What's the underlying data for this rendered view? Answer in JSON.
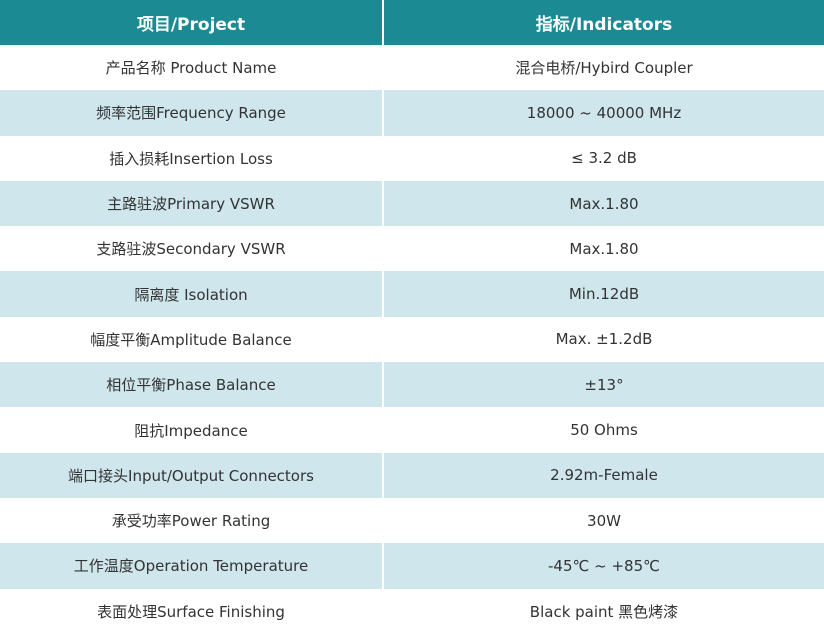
{
  "table": {
    "header": [
      "项目/Project",
      "指标/Indicators"
    ],
    "rows": [
      [
        "产品名称 Product Name",
        "混合电桥/Hybird Coupler"
      ],
      [
        "频率范围Frequency Range",
        "18000 ~ 40000 MHz"
      ],
      [
        "插入损耗Insertion Loss",
        "≤ 3.2 dB"
      ],
      [
        "主路驻波Primary VSWR",
        "Max.1.80"
      ],
      [
        "支路驻波Secondary VSWR",
        "Max.1.80"
      ],
      [
        "隔离度 Isolation",
        "Min.12dB"
      ],
      [
        "幅度平衡Amplitude Balance",
        "Max. ±1.2dB"
      ],
      [
        "相位平衡Phase Balance",
        "±13°"
      ],
      [
        "阻抗Impedance",
        "50 Ohms"
      ],
      [
        "端口接头Input/Output Connectors",
        "2.92m-Female"
      ],
      [
        "承受功率Power Rating",
        "30W"
      ],
      [
        "工作温度Operation Temperature",
        "-45℃ ~ +85℃"
      ],
      [
        "表面处理Surface Finishing",
        "Black paint 黑色烤漆"
      ]
    ]
  }
}
